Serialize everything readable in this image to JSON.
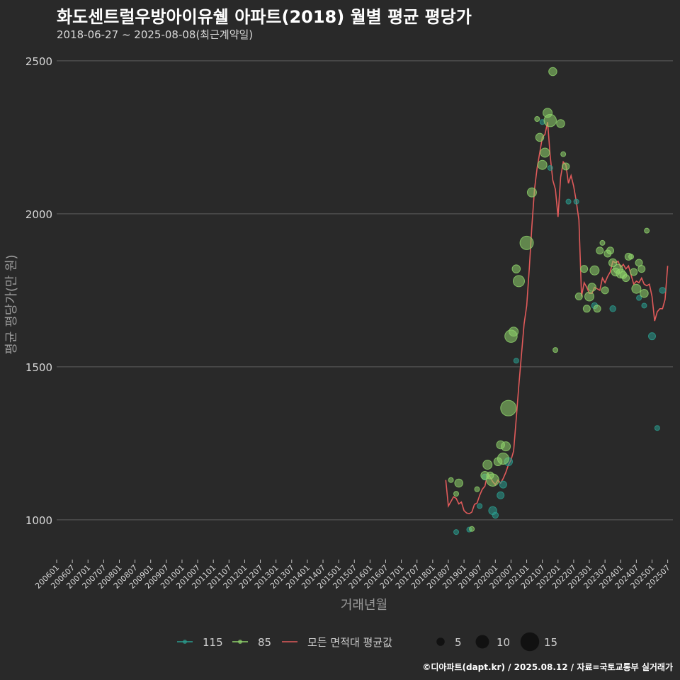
{
  "header": {
    "title": "화도센트럴우방아이유쉘 아파트(2018) 월별 평균 평당가",
    "subtitle": "2018-06-27 ~ 2025-08-08(최근계약일)"
  },
  "footer": {
    "credit": "©디아파트(dapt.kr) / 2025.08.12 / 자료=국토교통부 실거래가"
  },
  "colors": {
    "background": "#292929",
    "grid": "#5e5e5e",
    "series_115": "#2a9d8f",
    "series_85": "#8fd36b",
    "avg_line": "#e05a5a",
    "size_legend": "#111111"
  },
  "chart_data": {
    "type": "line+scatter",
    "xlabel": "거래년월",
    "ylabel": "평균 평당가(만 원)",
    "ylim": [
      870,
      2560
    ],
    "yticks": [
      1000,
      1500,
      2000,
      2500
    ],
    "xlim_months": [
      "2006-01",
      "2025-09"
    ],
    "xticks": [
      "200601",
      "200607",
      "200701",
      "200707",
      "200801",
      "200807",
      "200901",
      "200907",
      "201001",
      "201007",
      "201101",
      "201107",
      "201201",
      "201207",
      "201301",
      "201307",
      "201401",
      "201407",
      "201501",
      "201507",
      "201601",
      "201607",
      "201701",
      "201707",
      "201801",
      "201807",
      "201901",
      "201907",
      "202001",
      "202007",
      "202101",
      "202107",
      "202201",
      "202207",
      "202301",
      "202307",
      "202401",
      "202407",
      "202501",
      "202507"
    ],
    "legend": {
      "series": [
        {
          "key": "115",
          "label": "115"
        },
        {
          "key": "85",
          "label": "85"
        },
        {
          "key": "avg",
          "label": "모든 면적대 평균값"
        }
      ],
      "sizes": [
        {
          "value": 5,
          "label": "5"
        },
        {
          "value": 10,
          "label": "10"
        },
        {
          "value": 15,
          "label": "15"
        }
      ]
    },
    "series": [
      {
        "name": "모든 면적대 평균값",
        "key": "avg",
        "points": [
          [
            "2018-06",
            1130
          ],
          [
            "2018-07",
            1045
          ],
          [
            "2018-08",
            1060
          ],
          [
            "2018-09",
            1075
          ],
          [
            "2018-10",
            1070
          ],
          [
            "2018-11",
            1052
          ],
          [
            "2018-12",
            1058
          ],
          [
            "2019-01",
            1030
          ],
          [
            "2019-02",
            1022
          ],
          [
            "2019-03",
            1020
          ],
          [
            "2019-04",
            1025
          ],
          [
            "2019-05",
            1050
          ],
          [
            "2019-06",
            1055
          ],
          [
            "2019-07",
            1080
          ],
          [
            "2019-08",
            1100
          ],
          [
            "2019-09",
            1110
          ],
          [
            "2019-10",
            1150
          ],
          [
            "2019-11",
            1140
          ],
          [
            "2019-12",
            1125
          ],
          [
            "2020-01",
            1115
          ],
          [
            "2020-02",
            1130
          ],
          [
            "2020-03",
            1120
          ],
          [
            "2020-04",
            1135
          ],
          [
            "2020-05",
            1155
          ],
          [
            "2020-06",
            1180
          ],
          [
            "2020-07",
            1195
          ],
          [
            "2020-08",
            1225
          ],
          [
            "2020-09",
            1330
          ],
          [
            "2020-10",
            1440
          ],
          [
            "2020-11",
            1540
          ],
          [
            "2020-12",
            1640
          ],
          [
            "2021-01",
            1700
          ],
          [
            "2021-02",
            1820
          ],
          [
            "2021-03",
            1960
          ],
          [
            "2021-04",
            2080
          ],
          [
            "2021-05",
            2150
          ],
          [
            "2021-06",
            2200
          ],
          [
            "2021-07",
            2250
          ],
          [
            "2021-08",
            2260
          ],
          [
            "2021-09",
            2300
          ],
          [
            "2021-10",
            2190
          ],
          [
            "2021-11",
            2110
          ],
          [
            "2021-12",
            2080
          ],
          [
            "2022-01",
            1990
          ],
          [
            "2022-02",
            2120
          ],
          [
            "2022-03",
            2170
          ],
          [
            "2022-04",
            2160
          ],
          [
            "2022-05",
            2100
          ],
          [
            "2022-06",
            2125
          ],
          [
            "2022-07",
            2090
          ],
          [
            "2022-08",
            2040
          ],
          [
            "2022-09",
            1980
          ],
          [
            "2022-10",
            1730
          ],
          [
            "2022-11",
            1775
          ],
          [
            "2022-12",
            1760
          ],
          [
            "2023-01",
            1740
          ],
          [
            "2023-02",
            1740
          ],
          [
            "2023-03",
            1760
          ],
          [
            "2023-04",
            1755
          ],
          [
            "2023-05",
            1750
          ],
          [
            "2023-06",
            1790
          ],
          [
            "2023-07",
            1775
          ],
          [
            "2023-08",
            1795
          ],
          [
            "2023-09",
            1810
          ],
          [
            "2023-10",
            1845
          ],
          [
            "2023-11",
            1840
          ],
          [
            "2023-12",
            1845
          ],
          [
            "2024-01",
            1825
          ],
          [
            "2024-02",
            1835
          ],
          [
            "2024-03",
            1820
          ],
          [
            "2024-04",
            1830
          ],
          [
            "2024-05",
            1800
          ],
          [
            "2024-06",
            1770
          ],
          [
            "2024-07",
            1780
          ],
          [
            "2024-08",
            1775
          ],
          [
            "2024-09",
            1790
          ],
          [
            "2024-10",
            1770
          ],
          [
            "2024-11",
            1765
          ],
          [
            "2024-12",
            1770
          ],
          [
            "2025-01",
            1730
          ],
          [
            "2025-02",
            1650
          ],
          [
            "2025-03",
            1680
          ],
          [
            "2025-04",
            1690
          ],
          [
            "2025-05",
            1690
          ],
          [
            "2025-06",
            1720
          ],
          [
            "2025-07",
            1830
          ]
        ]
      },
      {
        "name": "115",
        "key": "115",
        "points": [
          [
            "2018-10",
            960,
            2
          ],
          [
            "2019-03",
            968,
            2
          ],
          [
            "2019-07",
            1045,
            2
          ],
          [
            "2019-09",
            1140,
            3
          ],
          [
            "2019-12",
            1030,
            5
          ],
          [
            "2020-01",
            1015,
            3
          ],
          [
            "2020-03",
            1080,
            4
          ],
          [
            "2020-04",
            1115,
            4
          ],
          [
            "2020-06",
            1190,
            5
          ],
          [
            "2020-09",
            1520,
            2
          ],
          [
            "2021-07",
            2300,
            2
          ],
          [
            "2021-10",
            2150,
            2
          ],
          [
            "2022-05",
            2040,
            2
          ],
          [
            "2022-08",
            2040,
            2
          ],
          [
            "2023-03",
            1700,
            3
          ],
          [
            "2023-10",
            1690,
            3
          ],
          [
            "2024-08",
            1725,
            2
          ],
          [
            "2024-10",
            1700,
            2
          ],
          [
            "2025-01",
            1600,
            4
          ],
          [
            "2025-03",
            1300,
            2
          ],
          [
            "2025-05",
            1750,
            3
          ]
        ]
      },
      {
        "name": "85",
        "key": "85",
        "points": [
          [
            "2018-08",
            1130,
            2
          ],
          [
            "2018-10",
            1085,
            2
          ],
          [
            "2018-11",
            1120,
            5
          ],
          [
            "2019-04",
            970,
            2
          ],
          [
            "2019-06",
            1100,
            2
          ],
          [
            "2019-09",
            1145,
            5
          ],
          [
            "2019-10",
            1180,
            6
          ],
          [
            "2019-11",
            1145,
            4
          ],
          [
            "2019-12",
            1130,
            9
          ],
          [
            "2020-02",
            1190,
            5
          ],
          [
            "2020-03",
            1245,
            5
          ],
          [
            "2020-04",
            1200,
            8
          ],
          [
            "2020-05",
            1240,
            6
          ],
          [
            "2020-06",
            1365,
            12
          ],
          [
            "2020-07",
            1600,
            9
          ],
          [
            "2020-08",
            1615,
            6
          ],
          [
            "2020-09",
            1820,
            5
          ],
          [
            "2020-10",
            1780,
            8
          ],
          [
            "2021-01",
            1905,
            10
          ],
          [
            "2021-03",
            2070,
            6
          ],
          [
            "2021-05",
            2310,
            2
          ],
          [
            "2021-06",
            2250,
            5
          ],
          [
            "2021-07",
            2160,
            6
          ],
          [
            "2021-08",
            2200,
            6
          ],
          [
            "2021-09",
            2330,
            6
          ],
          [
            "2021-10",
            2305,
            9
          ],
          [
            "2021-11",
            2465,
            5
          ],
          [
            "2021-12",
            1555,
            2
          ],
          [
            "2022-02",
            2295,
            5
          ],
          [
            "2022-03",
            2195,
            2
          ],
          [
            "2022-04",
            2155,
            4
          ],
          [
            "2022-09",
            1730,
            4
          ],
          [
            "2022-11",
            1820,
            4
          ],
          [
            "2022-12",
            1690,
            4
          ],
          [
            "2023-01",
            1730,
            6
          ],
          [
            "2023-02",
            1760,
            5
          ],
          [
            "2023-03",
            1815,
            6
          ],
          [
            "2023-04",
            1690,
            4
          ],
          [
            "2023-05",
            1880,
            4
          ],
          [
            "2023-06",
            1905,
            2
          ],
          [
            "2023-07",
            1750,
            4
          ],
          [
            "2023-08",
            1870,
            4
          ],
          [
            "2023-09",
            1880,
            4
          ],
          [
            "2023-10",
            1840,
            5
          ],
          [
            "2023-11",
            1810,
            5
          ],
          [
            "2023-12",
            1820,
            6
          ],
          [
            "2024-01",
            1805,
            6
          ],
          [
            "2024-02",
            1800,
            4
          ],
          [
            "2024-03",
            1790,
            4
          ],
          [
            "2024-04",
            1860,
            4
          ],
          [
            "2024-05",
            1860,
            2
          ],
          [
            "2024-06",
            1810,
            4
          ],
          [
            "2024-07",
            1755,
            6
          ],
          [
            "2024-08",
            1840,
            4
          ],
          [
            "2024-09",
            1820,
            4
          ],
          [
            "2024-10",
            1740,
            5
          ],
          [
            "2024-11",
            1945,
            2
          ]
        ]
      }
    ]
  }
}
